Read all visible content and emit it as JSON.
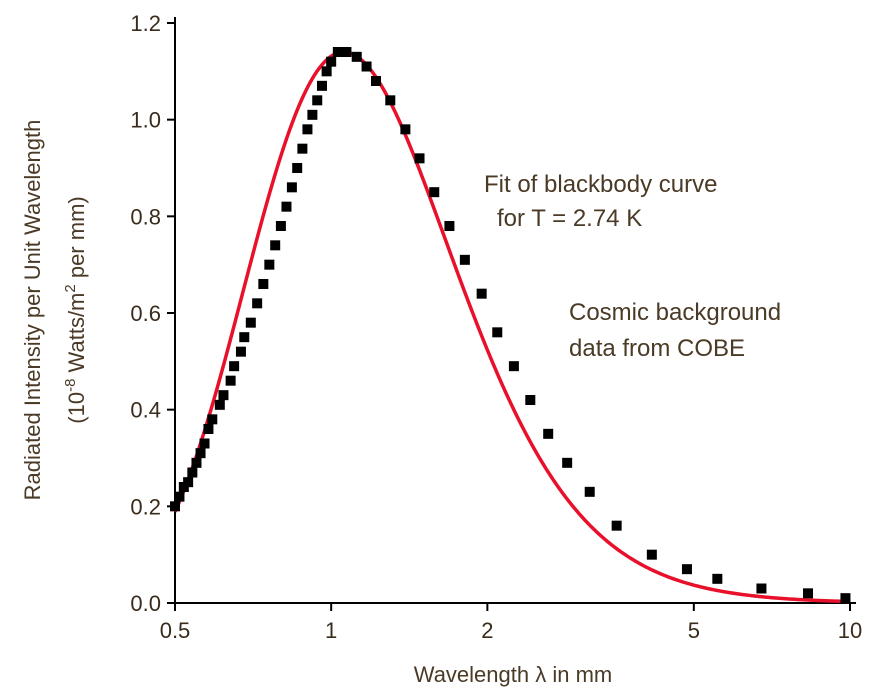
{
  "chart_data": {
    "type": "scatter",
    "xscale": "log",
    "xlim": [
      0.5,
      10
    ],
    "ylim": [
      0,
      1.2
    ],
    "xticks": [
      0.5,
      1,
      2,
      5,
      10
    ],
    "xtick_labels": [
      "0.5",
      "1",
      "2",
      "5",
      "10"
    ],
    "yticks": [
      0,
      0.2,
      0.4,
      0.6,
      0.8,
      1.0,
      1.2
    ],
    "ytick_labels": [
      "0.0",
      "0.2",
      "0.4",
      "0.6",
      "0.8",
      "1.0",
      "1.2"
    ],
    "xlabel": "Wavelength λ in mm",
    "ylabel_line1": "Radiated Intensity per Unit Wavelength",
    "ylabel_line2_parts": [
      "(10",
      "-8",
      " Watts/m",
      "2",
      " per mm)"
    ],
    "annotations": {
      "fit_line1": "Fit of blackbody curve",
      "fit_line2": "for T = 2.74 K",
      "data_line1": "Cosmic background",
      "data_line2": "data from COBE"
    },
    "series": [
      {
        "type": "scatter",
        "marker": "square",
        "color": "#000000",
        "x": [
          0.5,
          0.51,
          0.52,
          0.53,
          0.54,
          0.55,
          0.56,
          0.57,
          0.58,
          0.59,
          0.61,
          0.62,
          0.64,
          0.65,
          0.67,
          0.68,
          0.7,
          0.72,
          0.74,
          0.76,
          0.78,
          0.8,
          0.82,
          0.84,
          0.86,
          0.88,
          0.9,
          0.92,
          0.94,
          0.96,
          0.98,
          1.0,
          1.03,
          1.07,
          1.12,
          1.17,
          1.22,
          1.3,
          1.39,
          1.48,
          1.58,
          1.69,
          1.81,
          1.95,
          2.09,
          2.25,
          2.42,
          2.62,
          2.85,
          3.15,
          3.55,
          4.15,
          4.85,
          5.55,
          6.75,
          8.3,
          9.8
        ],
        "y": [
          0.2,
          0.22,
          0.24,
          0.25,
          0.27,
          0.29,
          0.31,
          0.33,
          0.36,
          0.38,
          0.41,
          0.43,
          0.46,
          0.49,
          0.52,
          0.55,
          0.58,
          0.62,
          0.66,
          0.7,
          0.74,
          0.78,
          0.82,
          0.86,
          0.9,
          0.94,
          0.98,
          1.01,
          1.04,
          1.07,
          1.1,
          1.12,
          1.14,
          1.14,
          1.13,
          1.11,
          1.08,
          1.04,
          0.98,
          0.92,
          0.85,
          0.78,
          0.71,
          0.64,
          0.56,
          0.49,
          0.42,
          0.35,
          0.29,
          0.23,
          0.16,
          0.1,
          0.07,
          0.05,
          0.03,
          0.02,
          0.01
        ]
      },
      {
        "type": "line",
        "color": "#e8102a",
        "temperature_K": 2.74
      }
    ]
  }
}
